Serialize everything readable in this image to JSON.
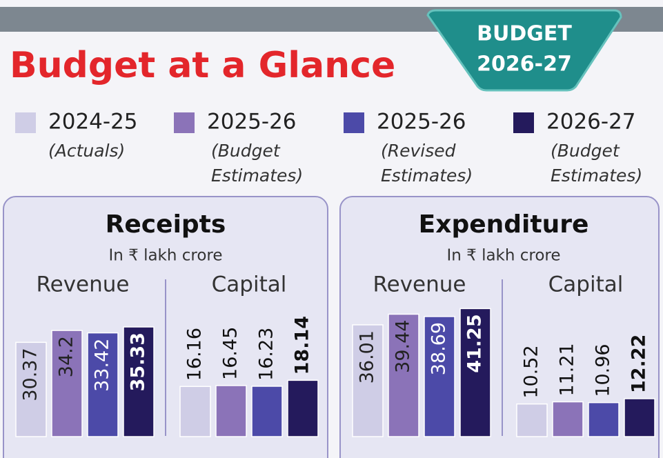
{
  "header": {
    "title": "Budget at a Glance",
    "badge": [
      "BUDGET",
      "2026-27"
    ]
  },
  "legend_notes": [
    [
      "(Actuals)"
    ],
    [
      "(Budget",
      "Estimates)"
    ],
    [
      "(Revised",
      "Estimates)"
    ],
    [
      "(Budget",
      "Estimates)"
    ]
  ],
  "chart_data": [
    {
      "type": "bar",
      "title": "Receipts",
      "subtitle": "In ₹ lakh crore",
      "categories": [
        "Revenue",
        "Capital"
      ],
      "series": [
        {
          "name": "2024-25",
          "color": "#cfcde6",
          "values": [
            30.37,
            16.16
          ]
        },
        {
          "name": "2025-26",
          "color": "#8b73b8",
          "values": [
            34.2,
            16.45
          ]
        },
        {
          "name": "2025-26",
          "color": "#4c4aa8",
          "values": [
            33.42,
            16.23
          ]
        },
        {
          "name": "2026-27",
          "color": "#241a5c",
          "values": [
            35.33,
            18.14
          ]
        }
      ]
    },
    {
      "type": "bar",
      "title": "Expenditure",
      "subtitle": "In ₹ lakh crore",
      "categories": [
        "Revenue",
        "Capital"
      ],
      "series": [
        {
          "name": "2024-25",
          "color": "#cfcde6",
          "values": [
            36.01,
            10.52
          ]
        },
        {
          "name": "2025-26",
          "color": "#8b73b8",
          "values": [
            39.44,
            11.21
          ]
        },
        {
          "name": "2025-26",
          "color": "#4c4aa8",
          "values": [
            38.69,
            10.96
          ]
        },
        {
          "name": "2026-27",
          "color": "#241a5c",
          "values": [
            41.25,
            12.22
          ]
        }
      ]
    }
  ]
}
